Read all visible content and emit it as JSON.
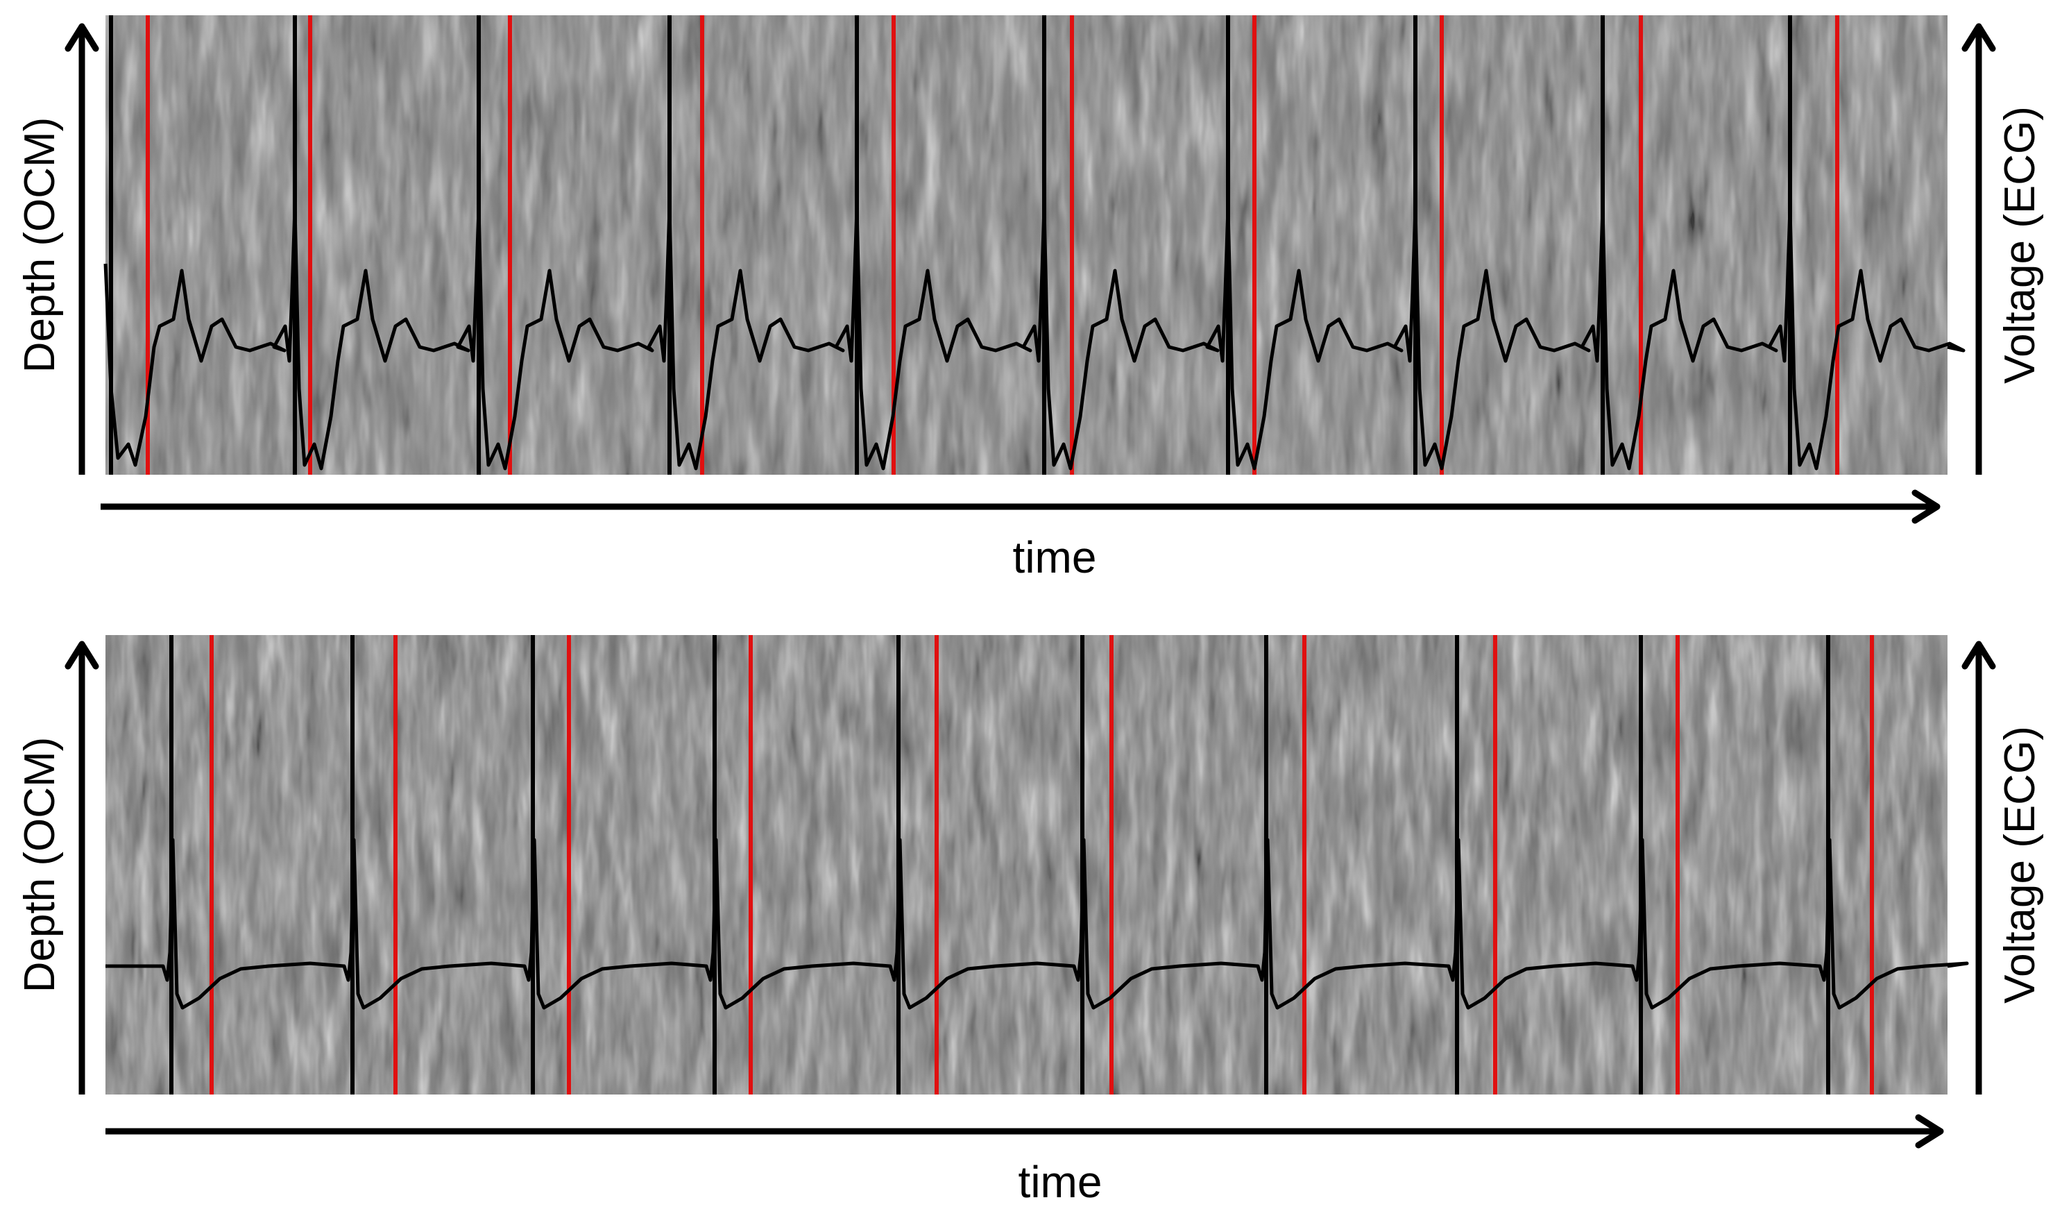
{
  "panels": [
    {
      "id": "top",
      "left_label": "Depth (OCM)",
      "right_label": "Voltage (ECG)",
      "bottom_label": "time",
      "ecg_style": "wide",
      "beat_count": 10
    },
    {
      "id": "bottom",
      "left_label": "Depth (OCM)",
      "right_label": "Voltage (ECG)",
      "bottom_label": "time",
      "ecg_style": "narrow",
      "beat_count": 10
    }
  ],
  "colors": {
    "marker_black": "#000000",
    "marker_red": "#e01010",
    "ecg_trace": "#000000",
    "ocm_background": "#7a7a7a"
  }
}
